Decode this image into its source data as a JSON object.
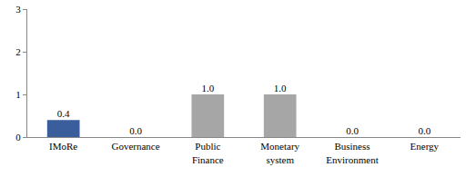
{
  "chart_data": {
    "type": "bar",
    "categories": [
      "IMoRe",
      "Governance",
      "Public Finance",
      "Monetary system",
      "Business Environment",
      "Energy"
    ],
    "values": [
      0.4,
      0.0,
      1.0,
      1.0,
      0.0,
      0.0
    ],
    "value_labels": [
      "0.4",
      "0.0",
      "1.0",
      "1.0",
      "0.0",
      "0.0"
    ],
    "colors": [
      "#3a5e9c",
      "#a6a6a6",
      "#a6a6a6",
      "#a6a6a6",
      "#a6a6a6",
      "#a6a6a6"
    ],
    "ylim": [
      0,
      3
    ],
    "yticks": [
      0,
      1,
      2,
      3
    ],
    "grid": false,
    "data_labels": true
  }
}
